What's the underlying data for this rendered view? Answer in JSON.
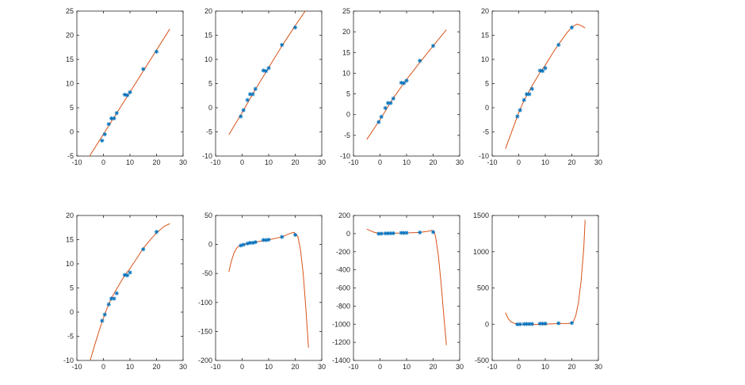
{
  "figure": {
    "layout": "2x4 subplots",
    "colors": {
      "data_marker": "#0072BD",
      "fit_line": "#D95319",
      "axes": "#262626",
      "background": "#ffffff"
    }
  },
  "chart_data": [
    {
      "type": "line",
      "subplot": 1,
      "xlim": [
        -10,
        30
      ],
      "ylim": [
        -5,
        25
      ],
      "xticks": [
        -10,
        0,
        10,
        20,
        30
      ],
      "yticks": [
        -5,
        0,
        5,
        10,
        15,
        20,
        25
      ],
      "series": [
        {
          "kind": "data-markers",
          "marker": "asterisk",
          "x": [
            -0.5,
            0.5,
            2,
            3,
            4,
            5,
            8,
            9,
            10,
            15,
            20
          ],
          "y": [
            -1.8,
            -0.5,
            1.6,
            2.8,
            2.8,
            3.9,
            7.7,
            7.6,
            8.2,
            13.0,
            16.6
          ]
        },
        {
          "kind": "fit",
          "degree": 1,
          "x": [
            -5.2,
            25
          ],
          "y": [
            -5.0,
            21.3
          ]
        }
      ]
    },
    {
      "type": "line",
      "subplot": 2,
      "xlim": [
        -10,
        30
      ],
      "ylim": [
        -10,
        20
      ],
      "xticks": [
        -10,
        0,
        10,
        20,
        30
      ],
      "yticks": [
        -10,
        -5,
        0,
        5,
        10,
        15,
        20
      ],
      "series": [
        {
          "kind": "data-markers",
          "marker": "asterisk",
          "x": [
            -0.5,
            0.5,
            2,
            3,
            4,
            5,
            8,
            9,
            10,
            15,
            20
          ],
          "y": [
            -1.8,
            -0.5,
            1.6,
            2.8,
            2.8,
            3.9,
            7.7,
            7.6,
            8.2,
            13.0,
            16.6
          ]
        },
        {
          "kind": "fit",
          "degree": 2,
          "x": [
            -5,
            0,
            5,
            10,
            15,
            20,
            25
          ],
          "y": [
            -5.6,
            -1.0,
            3.8,
            8.3,
            12.8,
            17.0,
            21.0
          ]
        }
      ]
    },
    {
      "type": "line",
      "subplot": 3,
      "xlim": [
        -10,
        30
      ],
      "ylim": [
        -10,
        25
      ],
      "xticks": [
        -10,
        0,
        10,
        20,
        30
      ],
      "yticks": [
        -10,
        -5,
        0,
        5,
        10,
        15,
        20,
        25
      ],
      "series": [
        {
          "kind": "data-markers",
          "marker": "asterisk",
          "x": [
            -0.5,
            0.5,
            2,
            3,
            4,
            5,
            8,
            9,
            10,
            15,
            20
          ],
          "y": [
            -1.8,
            -0.5,
            1.6,
            2.8,
            2.8,
            3.9,
            7.7,
            7.6,
            8.2,
            13.0,
            16.6
          ]
        },
        {
          "kind": "fit",
          "degree": 3,
          "x": [
            -5,
            0,
            5,
            10,
            15,
            20,
            25
          ],
          "y": [
            -6.0,
            -1.2,
            4.0,
            8.5,
            12.6,
            16.6,
            20.5
          ]
        }
      ]
    },
    {
      "type": "line",
      "subplot": 4,
      "xlim": [
        -10,
        30
      ],
      "ylim": [
        -10,
        20
      ],
      "xticks": [
        -10,
        0,
        10,
        20,
        30
      ],
      "yticks": [
        -10,
        -5,
        0,
        5,
        10,
        15,
        20
      ],
      "series": [
        {
          "kind": "data-markers",
          "marker": "asterisk",
          "x": [
            -0.5,
            0.5,
            2,
            3,
            4,
            5,
            8,
            9,
            10,
            15,
            20
          ],
          "y": [
            -1.8,
            -0.5,
            1.6,
            2.8,
            2.8,
            3.9,
            7.7,
            7.6,
            8.2,
            13.0,
            16.6
          ]
        },
        {
          "kind": "fit",
          "degree": 4,
          "x": [
            -5,
            -2,
            0,
            2,
            5,
            8,
            10,
            13,
            15,
            18,
            20,
            22,
            23.5,
            25
          ],
          "y": [
            -8.5,
            -4.0,
            -1.0,
            1.5,
            4.5,
            7.3,
            8.8,
            11.5,
            13.1,
            15.4,
            16.7,
            17.3,
            17.0,
            16.5
          ]
        }
      ]
    },
    {
      "type": "line",
      "subplot": 5,
      "xlim": [
        -10,
        30
      ],
      "ylim": [
        -10,
        20
      ],
      "xticks": [
        -10,
        0,
        10,
        20,
        30
      ],
      "yticks": [
        -10,
        -5,
        0,
        5,
        10,
        15,
        20
      ],
      "series": [
        {
          "kind": "data-markers",
          "marker": "asterisk",
          "x": [
            -0.5,
            0.5,
            2,
            3,
            4,
            5,
            8,
            9,
            10,
            15,
            20
          ],
          "y": [
            -1.8,
            -0.5,
            1.6,
            2.8,
            2.8,
            3.9,
            7.7,
            7.6,
            8.2,
            13.0,
            16.6
          ]
        },
        {
          "kind": "fit",
          "degree": 5,
          "x": [
            -5,
            -3,
            -1,
            1,
            3,
            5,
            8,
            10,
            13,
            15,
            18,
            20,
            23,
            25
          ],
          "y": [
            -10,
            -6.3,
            -2.8,
            0.3,
            2.9,
            4.8,
            7.6,
            9.0,
            11.5,
            13.2,
            15.2,
            16.4,
            17.8,
            18.3
          ]
        }
      ]
    },
    {
      "type": "line",
      "subplot": 6,
      "xlim": [
        -10,
        30
      ],
      "ylim": [
        -200,
        50
      ],
      "xticks": [
        -10,
        0,
        10,
        20,
        30
      ],
      "yticks": [
        -200,
        -150,
        -100,
        -50,
        0,
        50
      ],
      "series": [
        {
          "kind": "data-markers",
          "marker": "asterisk",
          "x": [
            -0.5,
            0.5,
            2,
            3,
            4,
            5,
            8,
            9,
            10,
            15,
            20
          ],
          "y": [
            -1.8,
            -0.5,
            1.6,
            2.8,
            2.8,
            3.9,
            7.7,
            7.6,
            8.2,
            13.0,
            16.6
          ]
        },
        {
          "kind": "fit",
          "degree": 6,
          "x": [
            -5,
            -4,
            -3,
            -2,
            -1,
            0,
            2,
            5,
            10,
            15,
            18,
            19.5,
            21,
            22,
            23,
            24,
            25
          ],
          "y": [
            -47,
            -28,
            -14,
            -6,
            -2,
            -0.5,
            1.5,
            4,
            8,
            13,
            19,
            21,
            14,
            -10,
            -50,
            -110,
            -178
          ]
        }
      ]
    },
    {
      "type": "line",
      "subplot": 7,
      "xlim": [
        -10,
        30
      ],
      "ylim": [
        -1400,
        200
      ],
      "xticks": [
        -10,
        0,
        10,
        20,
        30
      ],
      "yticks": [
        -1400,
        -1200,
        -1000,
        -800,
        -600,
        -400,
        -200,
        0,
        200
      ],
      "series": [
        {
          "kind": "data-markers",
          "marker": "asterisk",
          "x": [
            -0.5,
            0.5,
            2,
            3,
            4,
            5,
            8,
            9,
            10,
            15,
            20
          ],
          "y": [
            -1.8,
            -0.5,
            1.6,
            2.8,
            2.8,
            3.9,
            7.7,
            7.6,
            8.2,
            13.0,
            16.6
          ]
        },
        {
          "kind": "fit",
          "degree": 7,
          "x": [
            -5,
            -3.5,
            -2,
            0,
            5,
            10,
            15,
            18,
            19.5,
            20.5,
            21,
            22,
            23,
            24,
            25
          ],
          "y": [
            50,
            30,
            12,
            2,
            4,
            8,
            13,
            25,
            35,
            15,
            -50,
            -250,
            -550,
            -900,
            -1230
          ]
        }
      ]
    },
    {
      "type": "line",
      "subplot": 8,
      "xlim": [
        -10,
        30
      ],
      "ylim": [
        -500,
        1500
      ],
      "xticks": [
        -10,
        0,
        10,
        20,
        30
      ],
      "yticks": [
        -500,
        0,
        500,
        1000,
        1500
      ],
      "series": [
        {
          "kind": "data-markers",
          "marker": "asterisk",
          "x": [
            -0.5,
            0.5,
            2,
            3,
            4,
            5,
            8,
            9,
            10,
            15,
            20
          ],
          "y": [
            -1.8,
            -0.5,
            1.6,
            2.8,
            2.8,
            3.9,
            7.7,
            7.6,
            8.2,
            13.0,
            16.6
          ]
        },
        {
          "kind": "fit",
          "degree": 8,
          "x": [
            -5,
            -4,
            -3,
            -1.5,
            0,
            5,
            10,
            15,
            19,
            20.5,
            21.5,
            22.5,
            23.5,
            24.5,
            25
          ],
          "y": [
            160,
            80,
            35,
            10,
            0,
            -5,
            0,
            10,
            10,
            30,
            120,
            300,
            600,
            1050,
            1440
          ]
        }
      ]
    }
  ]
}
